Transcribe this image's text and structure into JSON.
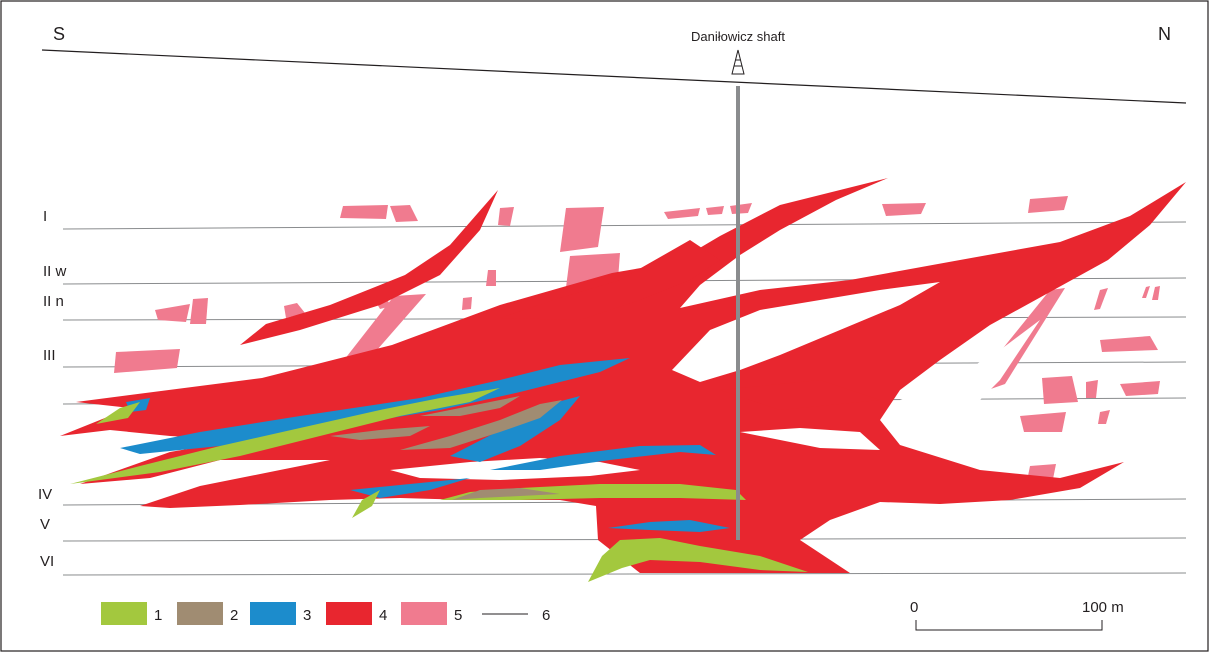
{
  "directions": {
    "south": "S",
    "north": "N"
  },
  "shaft": {
    "label": "Daniłowicz shaft"
  },
  "levels": [
    {
      "label": "I"
    },
    {
      "label": "II w"
    },
    {
      "label": "II n"
    },
    {
      "label": "III"
    },
    {
      "label": "IV"
    },
    {
      "label": "V"
    },
    {
      "label": "VI"
    }
  ],
  "legend": [
    {
      "label": "1",
      "color": "#a3c83e"
    },
    {
      "label": "2",
      "color": "#a08c72"
    },
    {
      "label": "3",
      "color": "#1c8ccc"
    },
    {
      "label": "4",
      "color": "#e8262f"
    },
    {
      "label": "5",
      "color": "#f07b8f"
    },
    {
      "label": "6",
      "symbol": "line"
    }
  ],
  "scale": {
    "start": "0",
    "end": "100 m"
  }
}
